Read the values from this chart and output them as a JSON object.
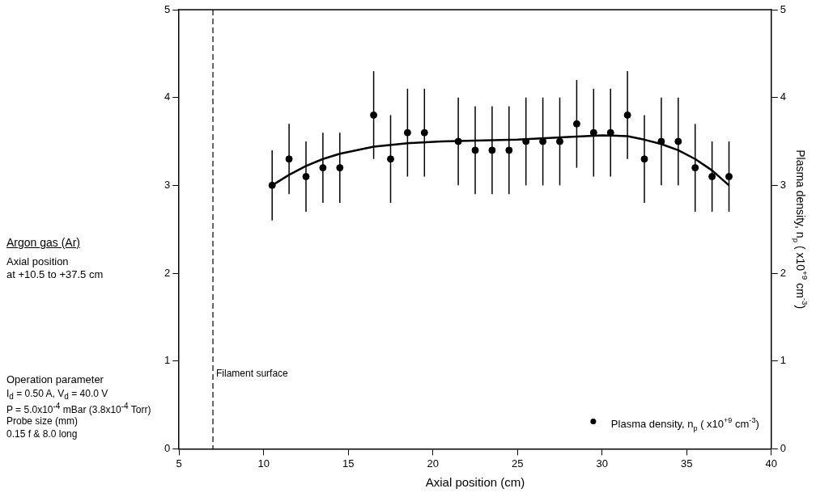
{
  "chart_data": {
    "type": "scatter",
    "xlabel": "Axial position (cm)",
    "y2label": "Plasma density, n$_{p}$ ( x10$^{+9}$ cm$^{-3}$)",
    "xlim": [
      5,
      40
    ],
    "xticks": [
      5,
      10,
      15,
      20,
      25,
      30,
      35,
      40
    ],
    "ylim": [
      0,
      5
    ],
    "yticks": [
      0,
      1,
      2,
      3,
      4,
      5
    ],
    "y2lim": [
      0,
      5
    ],
    "y2ticks": [
      0,
      1,
      2,
      3,
      4,
      5
    ],
    "legend": "bottom right",
    "series": [
      {
        "type": "scatter",
        "name": "Plasma density, n$_{p}$ ( x10$^{+9}$ cm$^{-3}$)",
        "color": "#000000",
        "marker": "circle",
        "x": [
          10.5,
          11.5,
          12.5,
          13.5,
          14.5,
          16.5,
          17.5,
          18.5,
          19.5,
          21.5,
          22.5,
          23.5,
          24.5,
          25.5,
          26.5,
          27.5,
          28.5,
          29.5,
          30.5,
          31.5,
          32.5,
          33.5,
          34.5,
          35.5,
          36.5,
          37.5
        ],
        "values": [
          3.0,
          3.3,
          3.1,
          3.2,
          3.2,
          3.8,
          3.3,
          3.6,
          3.6,
          3.5,
          3.4,
          3.4,
          3.4,
          3.5,
          3.5,
          3.5,
          3.7,
          3.6,
          3.6,
          3.8,
          3.3,
          3.5,
          3.5,
          3.2,
          3.1,
          3.1
        ],
        "errors": [
          0.4,
          0.4,
          0.4,
          0.4,
          0.4,
          0.5,
          0.5,
          0.5,
          0.5,
          0.5,
          0.5,
          0.5,
          0.5,
          0.5,
          0.5,
          0.5,
          0.5,
          0.5,
          0.5,
          0.5,
          0.5,
          0.5,
          0.5,
          0.5,
          0.4,
          0.4
        ]
      },
      {
        "type": "line",
        "color": "#000000",
        "marker": "none",
        "x": [
          10.5,
          11.5,
          12.5,
          13.5,
          14.5,
          16.5,
          18.5,
          20.5,
          25,
          28,
          30,
          31.5,
          32.5,
          33.5,
          34.5,
          35.5,
          36.5,
          37.5
        ],
        "values": [
          3.0,
          3.12,
          3.22,
          3.3,
          3.36,
          3.44,
          3.48,
          3.5,
          3.52,
          3.55,
          3.57,
          3.56,
          3.52,
          3.47,
          3.4,
          3.3,
          3.17,
          3.0
        ]
      }
    ],
    "ref_lines": [
      {
        "axis": "x",
        "value": 7,
        "label": "Filament surface",
        "line_style": "dashed",
        "color": "#000000"
      }
    ],
    "annotations": [
      "Argon gas (Ar)",
      "Axial position",
      "at +10.5 to +37.5 cm",
      "Operation parameter",
      "I$_{d}$ = 0.50 A,  V$_{d}$ = 40.0 V",
      "P = 5.0x10$^{-4}$ mBar (3.8x10$^{-4}$ Torr)",
      "Probe size (mm)",
      "0.15 f & 8.0 long"
    ]
  }
}
